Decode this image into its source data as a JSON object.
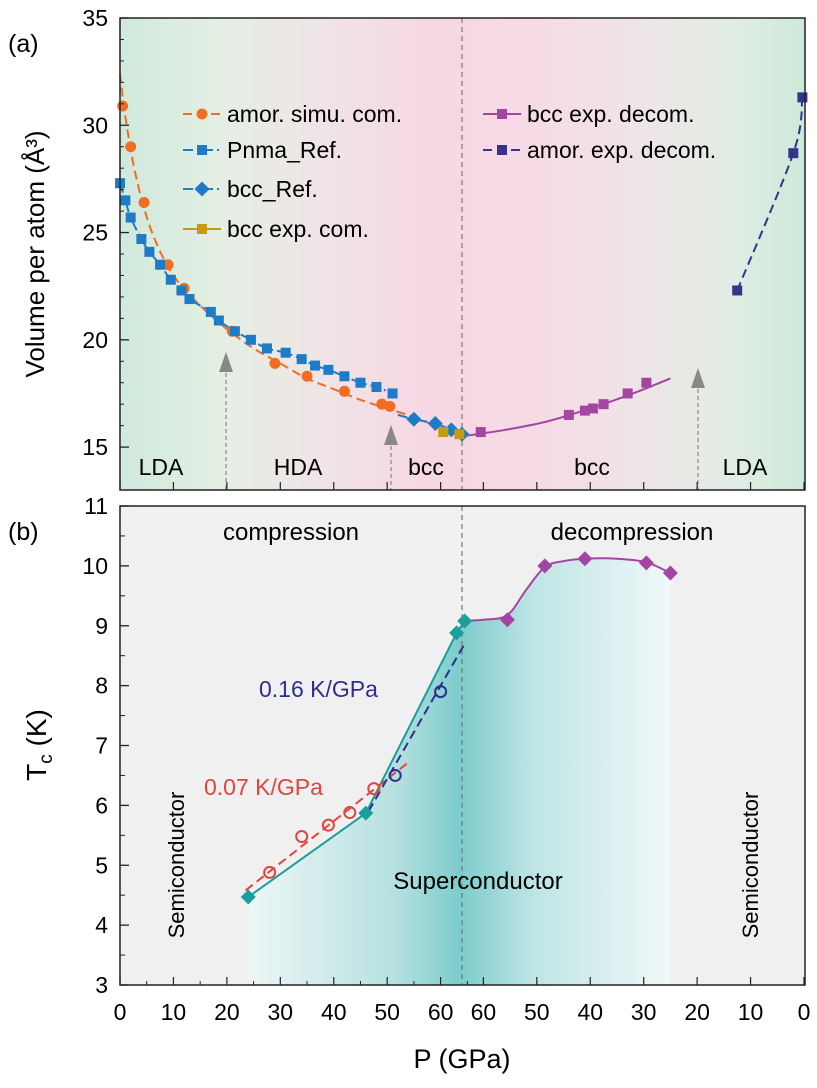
{
  "panels": {
    "a_label": "(a)",
    "b_label": "(b)"
  },
  "colors": {
    "orange": "#f26d21",
    "blue": "#1e7bc6",
    "gold": "#c69a12",
    "purple": "#a346a3",
    "navy": "#34348c",
    "teal": "#1a9e9e",
    "red": "#e2443e",
    "darkblue": "#2e2e8e",
    "green_bg": "#cfe9dc",
    "pink_bg": "#f5d6e4",
    "gray_bg": "#f0f0f0"
  },
  "chart_data": [
    {
      "type": "scatter",
      "panel": "(a)",
      "ylabel": "Volume per atom (Å³)",
      "ylim": [
        13,
        35
      ],
      "yticks": [
        "15",
        "20",
        "25",
        "30",
        "35"
      ],
      "xticks_compression": [
        "0",
        "10",
        "20",
        "30",
        "40",
        "50",
        "60"
      ],
      "xticks_decompression": [
        "60",
        "50",
        "40",
        "30",
        "20",
        "10",
        "0"
      ],
      "x_axis_note": "x runs 0→64 GPa (compression) then 64→0 GPa (decompression)",
      "regions": [
        "LDA",
        "HDA",
        "bcc",
        "bcc",
        "LDA"
      ],
      "legend": [
        "amor. simu. com.",
        "Pnma_Ref.",
        "bcc_Ref.",
        "bcc exp. com.",
        "bcc exp. decom.",
        "amor. exp. decom."
      ],
      "series": [
        {
          "name": "amor. simu. com.",
          "marker": "circle",
          "color": "#f26d21",
          "points": [
            [
              0.5,
              30.9
            ],
            [
              2,
              29.0
            ],
            [
              4.5,
              26.4
            ],
            [
              9,
              23.5
            ],
            [
              12,
              22.4
            ],
            [
              21,
              20.4
            ],
            [
              29,
              18.9
            ],
            [
              35,
              18.3
            ],
            [
              42,
              17.6
            ],
            [
              49,
              17.0
            ],
            [
              50.5,
              16.9
            ]
          ],
          "fit": [
            [
              0,
              32.4
            ],
            [
              1,
              30.4
            ],
            [
              3,
              27.6
            ],
            [
              6,
              25.0
            ],
            [
              10,
              23.0
            ],
            [
              15,
              21.6
            ],
            [
              20,
              20.5
            ],
            [
              25,
              19.6
            ],
            [
              30,
              18.9
            ],
            [
              35,
              18.2
            ],
            [
              40,
              17.7
            ],
            [
              45,
              17.2
            ],
            [
              50,
              16.8
            ],
            [
              55,
              16.4
            ],
            [
              60,
              15.9
            ],
            [
              64,
              15.6
            ]
          ]
        },
        {
          "name": "Pnma_Ref.",
          "marker": "square",
          "color": "#1e7bc6",
          "points": [
            [
              0,
              27.3
            ],
            [
              1,
              26.5
            ],
            [
              2,
              25.7
            ],
            [
              4,
              24.7
            ],
            [
              5.5,
              24.1
            ],
            [
              7.5,
              23.5
            ],
            [
              9.5,
              22.8
            ],
            [
              11.5,
              22.3
            ],
            [
              13,
              21.9
            ],
            [
              17,
              21.3
            ],
            [
              18.5,
              20.9
            ],
            [
              21.5,
              20.4
            ],
            [
              24.5,
              20.0
            ],
            [
              27.5,
              19.6
            ],
            [
              31,
              19.4
            ],
            [
              34,
              19.1
            ],
            [
              36.5,
              18.8
            ],
            [
              39,
              18.6
            ],
            [
              42,
              18.3
            ],
            [
              45,
              18.0
            ],
            [
              48,
              17.8
            ],
            [
              51,
              17.5
            ]
          ],
          "fit": [
            [
              0,
              27.3
            ],
            [
              1,
              26.5
            ],
            [
              2,
              25.7
            ],
            [
              4,
              24.7
            ],
            [
              5.5,
              24.1
            ],
            [
              7.5,
              23.5
            ],
            [
              9.5,
              22.8
            ],
            [
              11.5,
              22.3
            ],
            [
              13,
              21.9
            ],
            [
              17,
              21.3
            ],
            [
              18.5,
              20.9
            ],
            [
              21.5,
              20.4
            ],
            [
              24.5,
              20.0
            ],
            [
              27.5,
              19.6
            ],
            [
              31,
              19.4
            ],
            [
              34,
              19.1
            ],
            [
              36.5,
              18.8
            ],
            [
              39,
              18.6
            ],
            [
              42,
              18.3
            ],
            [
              45,
              18.0
            ],
            [
              48,
              17.8
            ],
            [
              51,
              17.5
            ]
          ]
        },
        {
          "name": "bcc_Ref.",
          "marker": "diamond",
          "color": "#1e7bc6",
          "points": [
            [
              55,
              16.3
            ],
            [
              59,
              16.1
            ],
            [
              62,
              15.8
            ],
            [
              64,
              15.6
            ]
          ],
          "fit": [
            [
              52,
              16.5
            ],
            [
              55,
              16.3
            ],
            [
              59,
              16.1
            ],
            [
              62,
              15.8
            ],
            [
              64,
              15.6
            ]
          ]
        },
        {
          "name": "bcc exp. com.",
          "marker": "square",
          "color": "#c69a12",
          "points": [
            [
              60.5,
              15.7
            ],
            [
              63.5,
              15.6
            ]
          ]
        },
        {
          "name": "bcc exp. decom.",
          "marker": "square",
          "color": "#a346a3",
          "points": [
            [
              60.5,
              15.7
            ],
            [
              44,
              16.5
            ],
            [
              41,
              16.7
            ],
            [
              39.5,
              16.8
            ],
            [
              37.5,
              17.0
            ],
            [
              33,
              17.5
            ],
            [
              29.5,
              18.0
            ]
          ],
          "fit": [
            [
              64,
              15.5
            ],
            [
              56,
              15.8
            ],
            [
              48,
              16.2
            ],
            [
              40,
              16.8
            ],
            [
              32,
              17.5
            ],
            [
              25,
              18.2
            ]
          ]
        },
        {
          "name": "amor. exp. decom.",
          "marker": "square",
          "color": "#34348c",
          "points": [
            [
              12.5,
              22.3
            ],
            [
              2,
              28.7
            ],
            [
              0.3,
              31.3
            ]
          ],
          "fit": [
            [
              12.5,
              22.3
            ],
            [
              2,
              28.7
            ],
            [
              0.3,
              31.3
            ]
          ]
        }
      ]
    },
    {
      "type": "scatter",
      "panel": "(b)",
      "ylabel": "T",
      "ylabel_sub": "c",
      "ylabel_unit": " (K)",
      "xlabel": "P (GPa)",
      "ylim": [
        3,
        11
      ],
      "yticks": [
        "3",
        "4",
        "5",
        "6",
        "7",
        "8",
        "9",
        "10",
        "11"
      ],
      "xticks_compression": [
        "0",
        "10",
        "20",
        "30",
        "40",
        "50",
        "60"
      ],
      "xticks_decompression": [
        "60",
        "50",
        "40",
        "30",
        "20",
        "10",
        "0"
      ],
      "region_labels": {
        "compression": "compression",
        "decompression": "decompression",
        "superconductor": "Superconductor",
        "semiconductor_left": "Semiconductor",
        "semiconductor_right": "Semiconductor"
      },
      "annotations": {
        "slope_red": "0.07 K/GPa",
        "slope_blue": "0.16 K/GPa"
      },
      "series": [
        {
          "name": "teal compression",
          "marker": "diamond",
          "color": "#1a9e9e",
          "points": [
            [
              24,
              4.47
            ],
            [
              46,
              5.87
            ],
            [
              63,
              8.88
            ],
            [
              64.5,
              9.08
            ]
          ],
          "fit": [
            [
              24,
              4.47
            ],
            [
              46,
              5.87
            ],
            [
              63,
              8.88
            ],
            [
              64.5,
              9.08
            ]
          ]
        },
        {
          "name": "red open compression",
          "marker": "open-circle",
          "color": "#e2443e",
          "points": [
            [
              28,
              4.88
            ],
            [
              34,
              5.48
            ],
            [
              39,
              5.67
            ],
            [
              43,
              5.88
            ],
            [
              47.5,
              6.28
            ]
          ],
          "fit": [
            [
              23.5,
              4.58
            ],
            [
              54,
              6.72
            ]
          ]
        },
        {
          "name": "blue open compression",
          "marker": "open-circle",
          "color": "#2e2e8e",
          "points": [
            [
              51.5,
              6.5
            ],
            [
              60,
              7.9
            ]
          ],
          "fit": [
            [
              46.5,
              5.9
            ],
            [
              64.5,
              8.7
            ]
          ]
        },
        {
          "name": "purple decompression",
          "marker": "diamond",
          "color": "#a346a3",
          "points": [
            [
              64.5,
              9.08
            ],
            [
              55.5,
              9.1
            ],
            [
              48.5,
              10.0
            ],
            [
              41,
              10.12
            ],
            [
              29.5,
              10.05
            ],
            [
              25,
              9.88
            ]
          ],
          "fit": [
            [
              64.5,
              9.08
            ],
            [
              60,
              9.1
            ],
            [
              55.5,
              9.18
            ],
            [
              52,
              9.6
            ],
            [
              48.5,
              9.98
            ],
            [
              45,
              10.08
            ],
            [
              41,
              10.12
            ],
            [
              35,
              10.12
            ],
            [
              29.5,
              10.06
            ],
            [
              25,
              9.88
            ]
          ]
        }
      ]
    }
  ]
}
